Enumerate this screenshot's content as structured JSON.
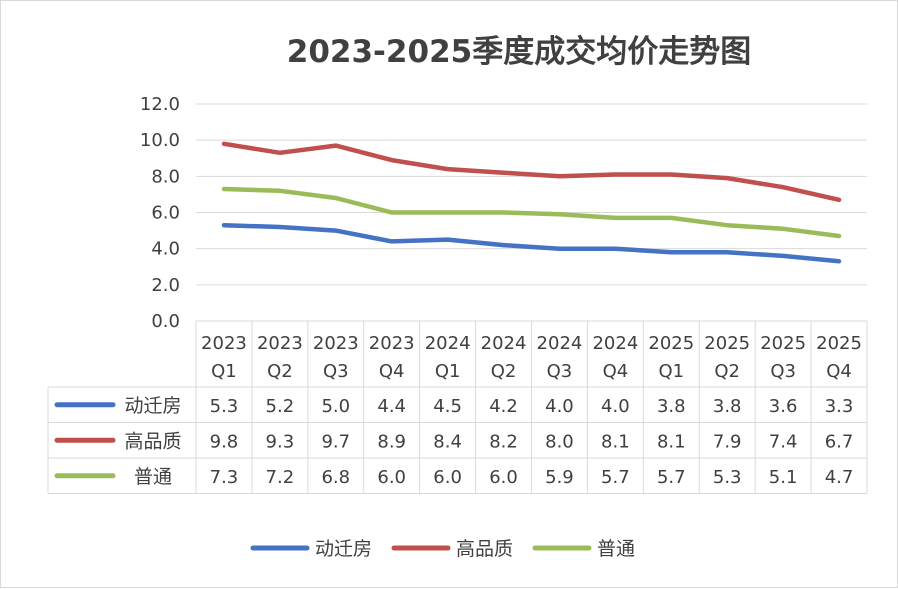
{
  "chart_data": {
    "type": "line",
    "title": "2023-2025季度成交均价走势图",
    "categories": [
      [
        "2023",
        "Q1"
      ],
      [
        "2023",
        "Q2"
      ],
      [
        "2023",
        "Q3"
      ],
      [
        "2023",
        "Q4"
      ],
      [
        "2024",
        "Q1"
      ],
      [
        "2024",
        "Q2"
      ],
      [
        "2024",
        "Q3"
      ],
      [
        "2024",
        "Q4"
      ],
      [
        "2025",
        "Q1"
      ],
      [
        "2025",
        "Q2"
      ],
      [
        "2025",
        "Q3"
      ],
      [
        "2025",
        "Q4"
      ]
    ],
    "series": [
      {
        "name": "动迁房",
        "color": "#4472C4",
        "values": [
          5.3,
          5.2,
          5.0,
          4.4,
          4.5,
          4.2,
          4.0,
          4.0,
          3.8,
          3.8,
          3.6,
          3.3
        ]
      },
      {
        "name": "高品质",
        "color": "#C0504D",
        "values": [
          9.8,
          9.3,
          9.7,
          8.9,
          8.4,
          8.2,
          8.0,
          8.1,
          8.1,
          7.9,
          7.4,
          6.7
        ]
      },
      {
        "name": "普通",
        "color": "#9BBB59",
        "values": [
          7.3,
          7.2,
          6.8,
          6.0,
          6.0,
          6.0,
          5.9,
          5.7,
          5.7,
          5.3,
          5.1,
          4.7
        ]
      }
    ],
    "y_ticks": [
      "0.0",
      "2.0",
      "4.0",
      "6.0",
      "8.0",
      "10.0",
      "12.0"
    ],
    "ylim": [
      0,
      12
    ],
    "xlabel": "",
    "ylabel": "",
    "grid": true,
    "legend": "bottom",
    "data_table": true
  }
}
